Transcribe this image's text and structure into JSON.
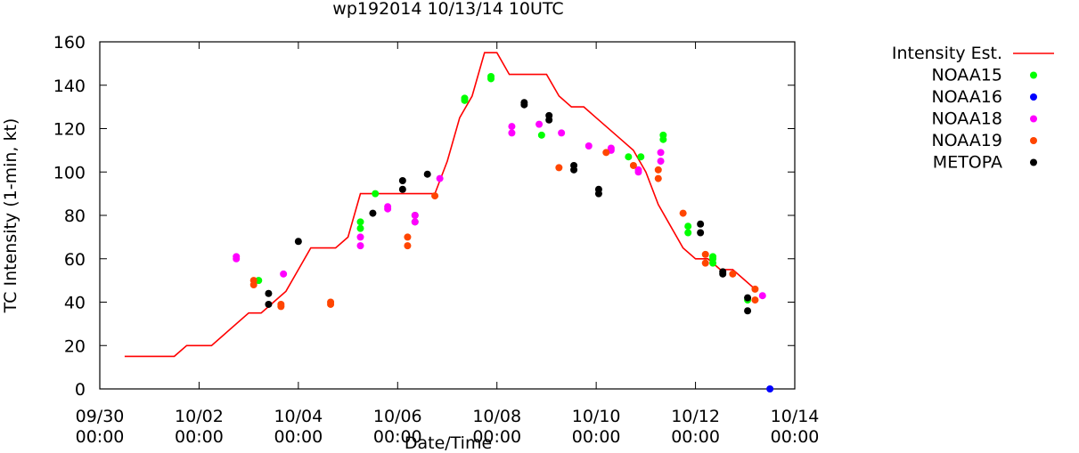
{
  "chart_data": {
    "type": "line+scatter",
    "title": "wp192014 10/13/14 10UTC",
    "xlabel": "Date/Time",
    "ylabel": "TC Intensity (1-min, kt)",
    "ylim": [
      0,
      160
    ],
    "yticks": [
      0,
      20,
      40,
      60,
      80,
      100,
      120,
      140,
      160
    ],
    "xlim": [
      0,
      14
    ],
    "x_unit": "days since 09/30 00:00",
    "xticks": [
      {
        "x": 0,
        "line1": "09/30",
        "line2": "00:00"
      },
      {
        "x": 2,
        "line1": "10/02",
        "line2": "00:00"
      },
      {
        "x": 4,
        "line1": "10/04",
        "line2": "00:00"
      },
      {
        "x": 6,
        "line1": "10/06",
        "line2": "00:00"
      },
      {
        "x": 8,
        "line1": "10/08",
        "line2": "00:00"
      },
      {
        "x": 10,
        "line1": "10/10",
        "line2": "00:00"
      },
      {
        "x": 12,
        "line1": "10/12",
        "line2": "00:00"
      },
      {
        "x": 14,
        "line1": "10/14",
        "line2": "00:00"
      }
    ],
    "legend_position": "outside-right",
    "series": [
      {
        "name": "Intensity Est.",
        "style": "line",
        "color": "#ff0000",
        "points": [
          [
            0.5,
            15
          ],
          [
            1.5,
            15
          ],
          [
            1.75,
            20
          ],
          [
            2.25,
            20
          ],
          [
            2.5,
            25
          ],
          [
            3.0,
            35
          ],
          [
            3.25,
            35
          ],
          [
            3.5,
            40
          ],
          [
            3.75,
            45
          ],
          [
            4.0,
            55
          ],
          [
            4.25,
            65
          ],
          [
            4.75,
            65
          ],
          [
            5.0,
            70
          ],
          [
            5.25,
            90
          ],
          [
            6.75,
            90
          ],
          [
            7.0,
            105
          ],
          [
            7.25,
            125
          ],
          [
            7.5,
            135
          ],
          [
            7.75,
            155
          ],
          [
            8.0,
            155
          ],
          [
            8.25,
            145
          ],
          [
            9.0,
            145
          ],
          [
            9.25,
            135
          ],
          [
            9.5,
            130
          ],
          [
            9.75,
            130
          ],
          [
            10.0,
            125
          ],
          [
            10.5,
            115
          ],
          [
            10.75,
            110
          ],
          [
            11.0,
            100
          ],
          [
            11.25,
            85
          ],
          [
            11.5,
            75
          ],
          [
            11.75,
            65
          ],
          [
            12.0,
            60
          ],
          [
            12.25,
            60
          ],
          [
            12.5,
            55
          ],
          [
            12.75,
            55
          ],
          [
            13.0,
            50
          ],
          [
            13.25,
            45
          ]
        ]
      },
      {
        "name": "NOAA15",
        "style": "points",
        "color": "#00ff00",
        "points": [
          [
            3.2,
            50
          ],
          [
            5.25,
            77
          ],
          [
            5.25,
            74
          ],
          [
            5.55,
            90
          ],
          [
            6.35,
            77
          ],
          [
            6.35,
            80
          ],
          [
            7.35,
            134
          ],
          [
            7.35,
            133
          ],
          [
            7.88,
            144
          ],
          [
            7.88,
            143
          ],
          [
            8.9,
            117
          ],
          [
            10.65,
            107
          ],
          [
            10.9,
            107
          ],
          [
            11.35,
            117
          ],
          [
            11.35,
            115
          ],
          [
            11.85,
            75
          ],
          [
            11.85,
            72
          ],
          [
            12.35,
            61
          ],
          [
            12.35,
            58
          ],
          [
            12.35,
            60
          ],
          [
            13.05,
            41
          ]
        ]
      },
      {
        "name": "NOAA16",
        "style": "points",
        "color": "#0000ff",
        "points": [
          [
            13.5,
            0
          ]
        ]
      },
      {
        "name": "NOAA18",
        "style": "points",
        "color": "#ff00ff",
        "points": [
          [
            2.75,
            61
          ],
          [
            2.75,
            60
          ],
          [
            3.7,
            53
          ],
          [
            5.25,
            70
          ],
          [
            5.25,
            66
          ],
          [
            5.8,
            84
          ],
          [
            5.8,
            83
          ],
          [
            6.35,
            80
          ],
          [
            6.35,
            77
          ],
          [
            6.85,
            97
          ],
          [
            8.3,
            121
          ],
          [
            8.3,
            118
          ],
          [
            8.85,
            122
          ],
          [
            9.3,
            118
          ],
          [
            9.85,
            112
          ],
          [
            10.3,
            111
          ],
          [
            10.3,
            110
          ],
          [
            10.85,
            101
          ],
          [
            10.85,
            100
          ],
          [
            11.3,
            109
          ],
          [
            11.3,
            105
          ],
          [
            13.35,
            43
          ]
        ]
      },
      {
        "name": "NOAA19",
        "style": "points",
        "color": "#ff4500",
        "points": [
          [
            3.1,
            50
          ],
          [
            3.1,
            48
          ],
          [
            3.65,
            39
          ],
          [
            3.65,
            38
          ],
          [
            4.65,
            40
          ],
          [
            4.65,
            39
          ],
          [
            6.2,
            70
          ],
          [
            6.2,
            66
          ],
          [
            6.75,
            89
          ],
          [
            9.25,
            102
          ],
          [
            10.2,
            109
          ],
          [
            10.75,
            103
          ],
          [
            11.25,
            101
          ],
          [
            11.25,
            97
          ],
          [
            11.75,
            81
          ],
          [
            12.2,
            62
          ],
          [
            12.2,
            58
          ],
          [
            12.75,
            53
          ],
          [
            13.2,
            46
          ],
          [
            13.2,
            41
          ]
        ]
      },
      {
        "name": "METOPA",
        "style": "points",
        "color": "#000000",
        "points": [
          [
            3.4,
            44
          ],
          [
            3.4,
            39
          ],
          [
            4.0,
            68
          ],
          [
            5.5,
            81
          ],
          [
            6.1,
            96
          ],
          [
            6.1,
            92
          ],
          [
            6.6,
            99
          ],
          [
            8.55,
            132
          ],
          [
            8.55,
            131
          ],
          [
            9.05,
            126
          ],
          [
            9.05,
            124
          ],
          [
            9.55,
            103
          ],
          [
            9.55,
            101
          ],
          [
            10.05,
            92
          ],
          [
            10.05,
            90
          ],
          [
            12.1,
            76
          ],
          [
            12.1,
            72
          ],
          [
            12.55,
            54
          ],
          [
            12.55,
            53
          ],
          [
            13.05,
            42
          ],
          [
            13.05,
            36
          ]
        ]
      }
    ]
  }
}
